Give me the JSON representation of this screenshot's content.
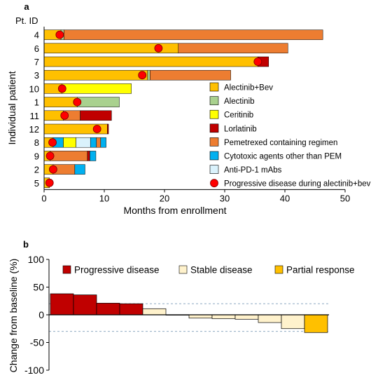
{
  "chart_data": [
    {
      "type": "bar",
      "orientation": "horizontal-stacked",
      "panel_label": "a",
      "id_header": "Pt. ID",
      "xlabel": "Months from enrollment",
      "ylabel": "Individual patient",
      "xlim": [
        0,
        50
      ],
      "xticks": [
        "0",
        "10",
        "20",
        "30",
        "40",
        "50"
      ],
      "grid": false,
      "legend_placement": "right",
      "legend": [
        {
          "key": "alec_bev",
          "label": "Alectinib+Bev",
          "color": "#FFC000"
        },
        {
          "key": "alec",
          "label": "Alectinib",
          "color": "#A9D18E"
        },
        {
          "key": "cer",
          "label": "Ceritinib",
          "color": "#FFFF00"
        },
        {
          "key": "lor",
          "label": "Lorlatinib",
          "color": "#C00000"
        },
        {
          "key": "pem",
          "label": "Pemetrexed containing regimen",
          "color": "#ED7D31"
        },
        {
          "key": "cyto",
          "label": "Cytotoxic agents other than PEM",
          "color": "#00B0F0"
        },
        {
          "key": "pd1",
          "label": "Anti-PD-1 mAbs",
          "color": "#DAF2FC"
        },
        {
          "key": "pd",
          "label": "Progressive  disease during alectinib+bev",
          "color": "#FF0000",
          "marker": "circle"
        }
      ],
      "patients": [
        {
          "id": "4",
          "segments": [
            [
              "alec_bev",
              0,
              2.8
            ],
            [
              "alec",
              2.8,
              3.3
            ],
            [
              "pem",
              3.3,
              46.3
            ]
          ],
          "pd": 2.6
        },
        {
          "id": "6",
          "segments": [
            [
              "alec_bev",
              0,
              22.3
            ],
            [
              "pem",
              22.3,
              40.5
            ]
          ],
          "pd": 19.0
        },
        {
          "id": "7",
          "segments": [
            [
              "alec_bev",
              0,
              35.5
            ],
            [
              "lor",
              35.5,
              37.3
            ]
          ],
          "pd": 35.5
        },
        {
          "id": "3",
          "segments": [
            [
              "alec_bev",
              0,
              17.2
            ],
            [
              "alec",
              17.2,
              17.6
            ],
            [
              "pem",
              17.6,
              31.0
            ]
          ],
          "pd": 16.3
        },
        {
          "id": "10",
          "segments": [
            [
              "alec_bev",
              0,
              3.0
            ],
            [
              "cer",
              3.0,
              14.5
            ]
          ],
          "pd": 3.0
        },
        {
          "id": "1",
          "segments": [
            [
              "alec_bev",
              0,
              5.5
            ],
            [
              "alec",
              5.5,
              12.5
            ]
          ],
          "pd": 5.5
        },
        {
          "id": "11",
          "segments": [
            [
              "alec_bev",
              0,
              3.2
            ],
            [
              "pem",
              3.2,
              6.0
            ],
            [
              "lor",
              6.0,
              11.2
            ]
          ],
          "pd": 3.4
        },
        {
          "id": "12",
          "segments": [
            [
              "alec_bev",
              0,
              10.5
            ],
            [
              "lor",
              10.5,
              10.7
            ]
          ],
          "pd": 8.8
        },
        {
          "id": "8",
          "segments": [
            [
              "alec_bev",
              0,
              1.5
            ],
            [
              "cyto",
              1.5,
              3.2
            ],
            [
              "cer",
              3.2,
              5.3
            ],
            [
              "pd1",
              5.3,
              7.7
            ],
            [
              "cyto",
              7.7,
              8.7
            ],
            [
              "pem",
              8.7,
              9.4
            ],
            [
              "cyto",
              9.4,
              10.3
            ]
          ],
          "pd": 1.4
        },
        {
          "id": "9",
          "segments": [
            [
              "alec_bev",
              0,
              1.0
            ],
            [
              "pem",
              1.0,
              7.2
            ],
            [
              "lor",
              7.2,
              7.6
            ],
            [
              "cyto",
              7.6,
              8.6
            ]
          ],
          "pd": 1.0
        },
        {
          "id": "2",
          "segments": [
            [
              "alec_bev",
              0,
              1.5
            ],
            [
              "pem",
              1.5,
              5.1
            ],
            [
              "cyto",
              5.1,
              6.8
            ]
          ],
          "pd": 1.5
        },
        {
          "id": "5",
          "segments": [
            [
              "alec_bev",
              0,
              0.9
            ]
          ],
          "pd": 0.9
        }
      ]
    },
    {
      "type": "bar",
      "subtype": "waterfall",
      "panel_label": "b",
      "ylabel": "Change from baseline (%)",
      "ylim": [
        -100,
        100
      ],
      "yticks": [
        "100",
        "50",
        "0",
        "-50",
        "-100"
      ],
      "reference_lines": [
        20,
        -30
      ],
      "legend_placement": "top",
      "legend": [
        {
          "key": "pd",
          "label": "Progressive disease",
          "color": "#C00000"
        },
        {
          "key": "sd",
          "label": "Stable disease",
          "color": "#FFF2CC"
        },
        {
          "key": "pr",
          "label": "Partial response",
          "color": "#FFC000"
        }
      ],
      "bars": [
        {
          "value": 38,
          "status": "pd"
        },
        {
          "value": 36,
          "status": "pd"
        },
        {
          "value": 21,
          "status": "pd"
        },
        {
          "value": 20,
          "status": "pd"
        },
        {
          "value": 11,
          "status": "sd"
        },
        {
          "value": 0,
          "status": "sd"
        },
        {
          "value": -6,
          "status": "sd"
        },
        {
          "value": -7,
          "status": "sd"
        },
        {
          "value": -8,
          "status": "sd"
        },
        {
          "value": -14,
          "status": "sd"
        },
        {
          "value": -25,
          "status": "sd"
        },
        {
          "value": -32,
          "status": "pr"
        }
      ]
    }
  ]
}
